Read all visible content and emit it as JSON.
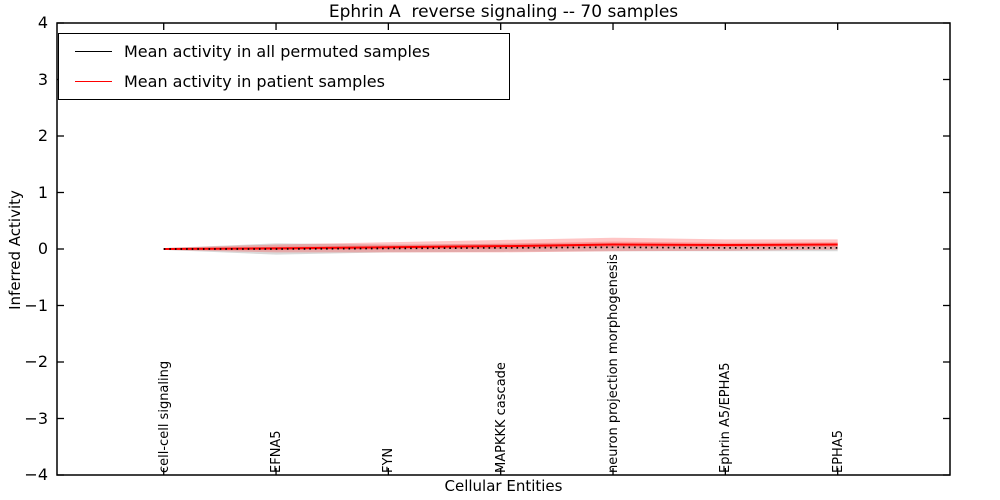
{
  "figure": {
    "title": "Ephrin A  reverse signaling -- 70 samples",
    "xlabel": "Cellular Entities",
    "ylabel": "Inferred Activity",
    "background_color": "#ffffff",
    "axis_color": "#000000"
  },
  "legend": {
    "position": "upper left",
    "items": [
      {
        "label": "Mean activity in all permuted samples",
        "color": "#000000"
      },
      {
        "label": "Mean activity in patient samples",
        "color": "#ff0000"
      }
    ]
  },
  "chart_data": {
    "type": "line",
    "title": "Ephrin A  reverse signaling -- 70 samples",
    "xlabel": "Cellular Entities",
    "ylabel": "Inferred Activity",
    "ylim": [
      -4,
      4
    ],
    "yticks": [
      4,
      3,
      2,
      1,
      0,
      -1,
      -2,
      -3,
      -4
    ],
    "ytick_labels": [
      "4",
      "3",
      "2",
      "1",
      "0",
      "−1",
      "−2",
      "−3",
      "−4"
    ],
    "grid": false,
    "legend_position": "upper left",
    "categories": [
      "cell-cell signaling",
      "EFNA5",
      "FYN",
      "MAPKKK cascade",
      "neuron projection morphogenesis",
      "Ephrin A5/EPHA5",
      "EPHA5"
    ],
    "series": [
      {
        "name": "Mean activity in all permuted samples",
        "color": "#000000",
        "linestyle": "dotted",
        "values": [
          0.0,
          0.0,
          0.01,
          0.02,
          0.03,
          0.02,
          0.02
        ],
        "band_halfwidth": [
          0.015,
          0.1,
          0.07,
          0.07,
          0.07,
          0.06,
          0.06
        ],
        "band_color": "#aaaaaa",
        "band_opacity": 0.45
      },
      {
        "name": "Mean activity in patient samples",
        "color": "#ff0000",
        "linestyle": "solid",
        "values": [
          0.0,
          0.01,
          0.03,
          0.05,
          0.08,
          0.07,
          0.08
        ],
        "band_halfwidth": [
          0.015,
          0.07,
          0.09,
          0.11,
          0.12,
          0.1,
          0.09
        ],
        "inner_band_halfwidth": [
          0.008,
          0.03,
          0.035,
          0.045,
          0.05,
          0.04,
          0.04
        ],
        "band_color": "#ff4040",
        "band_opacity": 0.3
      }
    ]
  }
}
